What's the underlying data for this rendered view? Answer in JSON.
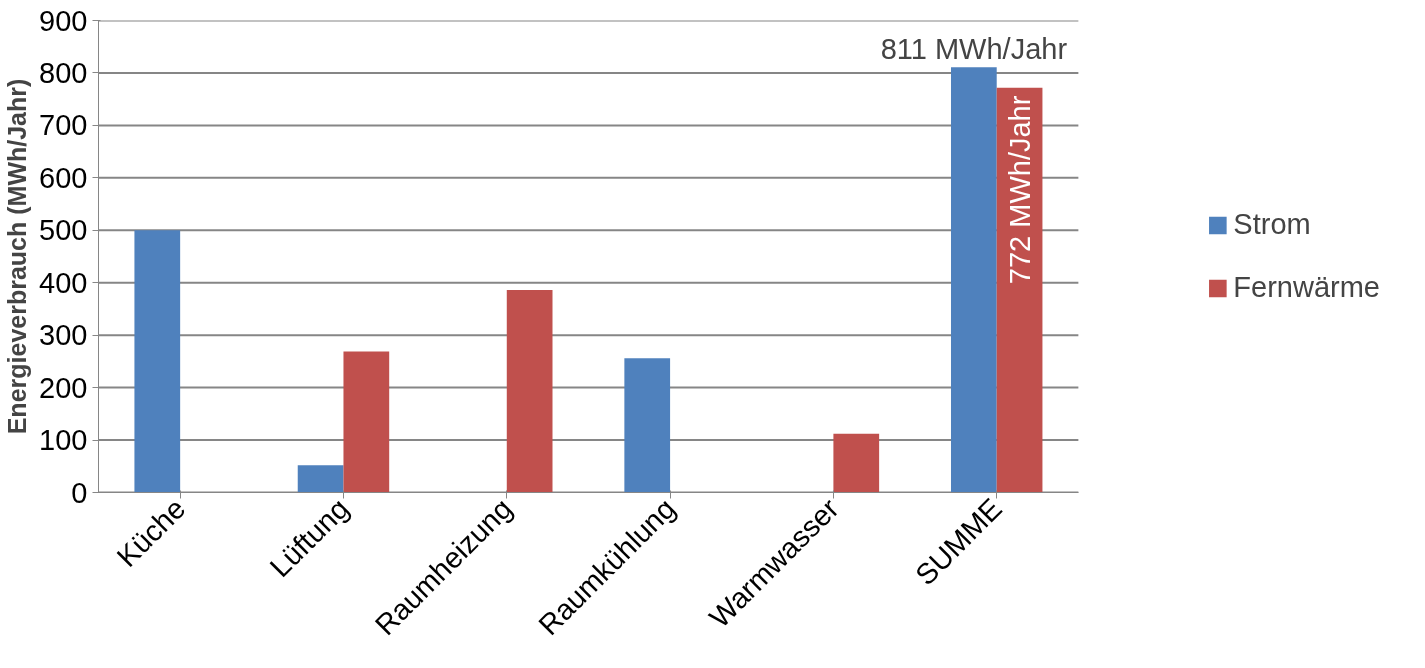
{
  "chart_data": {
    "type": "bar",
    "ylabel": "Energieverbrauch (MWh/Jahr)",
    "categories": [
      "Küche",
      "Lüftung",
      "Raumheizung",
      "Raumkühlung",
      "Warmwasser",
      "SUMME"
    ],
    "series": [
      {
        "name": "Strom",
        "color": "#4f81bd",
        "values": [
          500,
          52,
          null,
          256,
          null,
          811
        ],
        "value_labels": [
          null,
          null,
          null,
          null,
          null,
          "811 MWh/Jahr"
        ]
      },
      {
        "name": "Fernwärme",
        "color": "#c0504d",
        "values": [
          null,
          269,
          386,
          null,
          112,
          772
        ],
        "value_labels": [
          null,
          null,
          null,
          null,
          null,
          "772 MWh/Jahr"
        ]
      }
    ],
    "ylim": [
      0,
      900
    ],
    "yticks": [
      0,
      100,
      200,
      300,
      400,
      500,
      600,
      700,
      800,
      900
    ],
    "grid": "y",
    "legend": "right"
  }
}
